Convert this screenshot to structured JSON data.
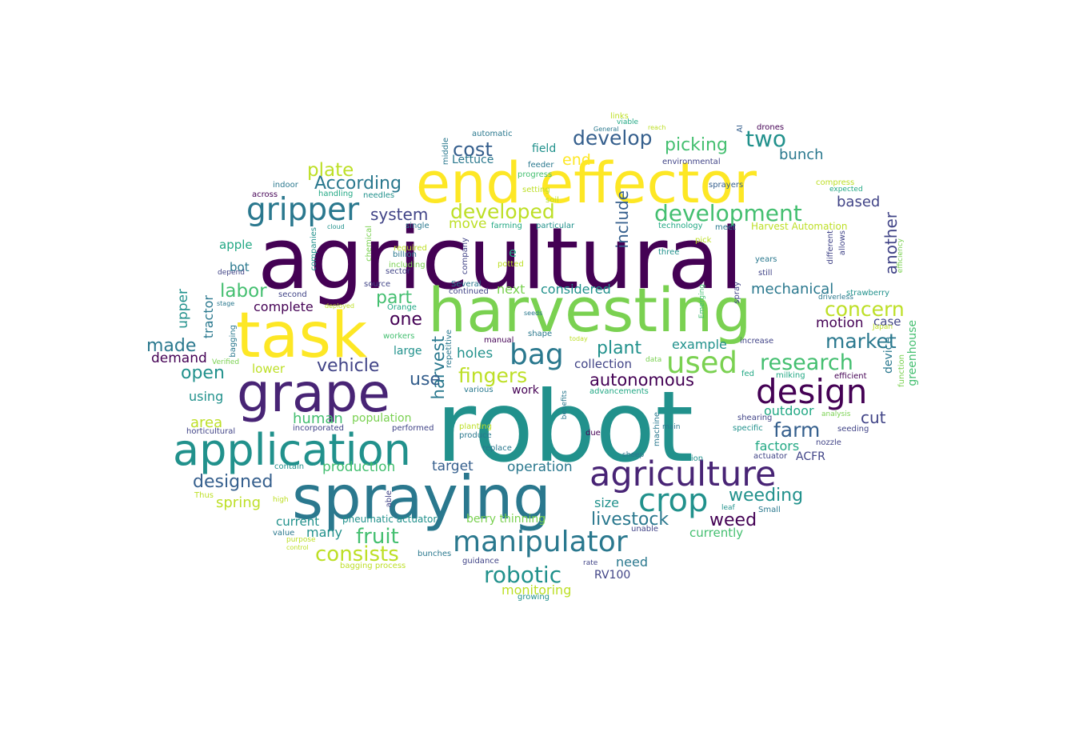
{
  "title": "Agricultural robot word cloud",
  "palette": {
    "p0": "#440154",
    "p1": "#482475",
    "p2": "#414487",
    "p3": "#355f8d",
    "p4": "#2a788e",
    "p5": "#21918c",
    "p6": "#22a884",
    "p7": "#44bf70",
    "p8": "#7ad151",
    "p9": "#bddf26",
    "p10": "#fde725"
  },
  "words": [
    {
      "text": "agricultural",
      "color": "#440154"
    },
    {
      "text": "robot",
      "color": "#21918c"
    },
    {
      "text": "end effector",
      "color": "#fde725"
    },
    {
      "text": "harvesting",
      "color": "#7ad151"
    },
    {
      "text": "spraying",
      "color": "#2a788e"
    },
    {
      "text": "grape",
      "color": "#482475"
    },
    {
      "text": "task",
      "color": "#fde725"
    },
    {
      "text": "application",
      "color": "#21918c"
    },
    {
      "text": "agriculture",
      "color": "#482475"
    },
    {
      "text": "design",
      "color": "#440154"
    },
    {
      "text": "manipulator",
      "color": "#2a788e"
    },
    {
      "text": "gripper",
      "color": "#2a788e"
    },
    {
      "text": "used",
      "color": "#7ad151"
    },
    {
      "text": "crop",
      "color": "#21918c"
    },
    {
      "text": "bag",
      "color": "#2a788e"
    },
    {
      "text": "development",
      "color": "#44bf70"
    },
    {
      "text": "developed",
      "color": "#bddf26"
    },
    {
      "text": "robotic",
      "color": "#21918c"
    },
    {
      "text": "research",
      "color": "#44bf70"
    },
    {
      "text": "two",
      "color": "#21918c"
    },
    {
      "text": "harvest",
      "color": "#2a788e"
    },
    {
      "text": "fruit",
      "color": "#44bf70"
    },
    {
      "text": "livestock",
      "color": "#2a788e"
    },
    {
      "text": "autonomous",
      "color": "#440154"
    },
    {
      "text": "fingers",
      "color": "#bddf26"
    },
    {
      "text": "According",
      "color": "#2a788e"
    },
    {
      "text": "concern",
      "color": "#bddf26"
    },
    {
      "text": "market",
      "color": "#2a788e"
    },
    {
      "text": "consists",
      "color": "#bddf26"
    },
    {
      "text": "develop",
      "color": "#355f8d"
    },
    {
      "text": "cost",
      "color": "#355f8d"
    },
    {
      "text": "plate",
      "color": "#bddf26"
    },
    {
      "text": "picking",
      "color": "#44bf70"
    },
    {
      "text": "farm",
      "color": "#355f8d"
    },
    {
      "text": "labor",
      "color": "#44bf70"
    },
    {
      "text": "plant",
      "color": "#21918c"
    },
    {
      "text": "vehicle",
      "color": "#414487"
    },
    {
      "text": "weeding",
      "color": "#21918c"
    },
    {
      "text": "one",
      "color": "#440154"
    },
    {
      "text": "use",
      "color": "#355f8d"
    },
    {
      "text": "include",
      "color": "#355f8d"
    },
    {
      "text": "another",
      "color": "#414487"
    },
    {
      "text": "system",
      "color": "#414487"
    },
    {
      "text": "made",
      "color": "#2a788e"
    },
    {
      "text": "open",
      "color": "#21918c"
    },
    {
      "text": "designed",
      "color": "#355f8d"
    },
    {
      "text": "weed",
      "color": "#440154"
    },
    {
      "text": "cut",
      "color": "#414487"
    },
    {
      "text": "part",
      "color": "#44bf70"
    },
    {
      "text": "human",
      "color": "#44bf70"
    },
    {
      "text": "mechanical",
      "color": "#2a788e"
    },
    {
      "text": "bunch",
      "color": "#2a788e"
    },
    {
      "text": "move",
      "color": "#bddf26"
    },
    {
      "text": "based",
      "color": "#414487"
    },
    {
      "text": "considered",
      "color": "#21918c"
    },
    {
      "text": "complete",
      "color": "#440154"
    },
    {
      "text": "next",
      "color": "#7ad151"
    },
    {
      "text": "motion",
      "color": "#440154"
    },
    {
      "text": "case",
      "color": "#414487"
    },
    {
      "text": "example",
      "color": "#21918c"
    },
    {
      "text": "holes",
      "color": "#21918c"
    },
    {
      "text": "collection",
      "color": "#414487"
    },
    {
      "text": "area",
      "color": "#bddf26"
    },
    {
      "text": "outdoor",
      "color": "#22a884"
    },
    {
      "text": "factors",
      "color": "#22a884"
    },
    {
      "text": "production",
      "color": "#44bf70"
    },
    {
      "text": "target",
      "color": "#355f8d"
    },
    {
      "text": "operation",
      "color": "#2a788e"
    },
    {
      "text": "spring",
      "color": "#bddf26"
    },
    {
      "text": "size",
      "color": "#21918c"
    },
    {
      "text": "current",
      "color": "#21918c"
    },
    {
      "text": "many",
      "color": "#21918c"
    },
    {
      "text": "berry thinning",
      "color": "#7ad151"
    },
    {
      "text": "pneumatic actuator",
      "color": "#21918c"
    },
    {
      "text": "currently",
      "color": "#44bf70"
    },
    {
      "text": "need",
      "color": "#2a788e"
    },
    {
      "text": "RV100",
      "color": "#414487"
    },
    {
      "text": "monitoring",
      "color": "#bddf26"
    },
    {
      "text": "end",
      "color": "#fde725"
    },
    {
      "text": "e",
      "color": "#22a884"
    },
    {
      "text": "population",
      "color": "#7ad151"
    },
    {
      "text": "work",
      "color": "#440154"
    },
    {
      "text": "large",
      "color": "#21918c"
    },
    {
      "text": "lower",
      "color": "#bddf26"
    },
    {
      "text": "tractor",
      "color": "#2a788e"
    },
    {
      "text": "upper",
      "color": "#21918c"
    },
    {
      "text": "demand",
      "color": "#440154"
    },
    {
      "text": "using",
      "color": "#21918c"
    },
    {
      "text": "apple",
      "color": "#22a884"
    },
    {
      "text": "bot",
      "color": "#2a788e"
    },
    {
      "text": "field",
      "color": "#21918c"
    },
    {
      "text": "Lettuce",
      "color": "#2a788e"
    },
    {
      "text": "device",
      "color": "#2a788e"
    },
    {
      "text": "greenhouse",
      "color": "#44bf70"
    },
    {
      "text": "ACFR",
      "color": "#414487"
    },
    {
      "text": "automatic",
      "color": "#2a788e"
    },
    {
      "text": "indoor",
      "color": "#2a788e"
    },
    {
      "text": "across",
      "color": "#440154"
    },
    {
      "text": "handling",
      "color": "#22a884"
    },
    {
      "text": "needles",
      "color": "#21918c"
    },
    {
      "text": "feeder",
      "color": "#2a788e"
    },
    {
      "text": "progress",
      "color": "#44bf70"
    },
    {
      "text": "setting",
      "color": "#bddf26"
    },
    {
      "text": "soil",
      "color": "#bddf26"
    },
    {
      "text": "farming",
      "color": "#22a884"
    },
    {
      "text": "particular",
      "color": "#21918c"
    },
    {
      "text": "single",
      "color": "#2a788e"
    },
    {
      "text": "billion",
      "color": "#2a788e"
    },
    {
      "text": "required",
      "color": "#bddf26"
    },
    {
      "text": "including",
      "color": "#7ad151"
    },
    {
      "text": "sector",
      "color": "#414487"
    },
    {
      "text": "source",
      "color": "#414487"
    },
    {
      "text": "potted",
      "color": "#bddf26"
    },
    {
      "text": "Several",
      "color": "#2a788e"
    },
    {
      "text": "continued",
      "color": "#414487"
    },
    {
      "text": "second",
      "color": "#414487"
    },
    {
      "text": "stage",
      "color": "#2a788e"
    },
    {
      "text": "deployed",
      "color": "#bddf26"
    },
    {
      "text": "Orange",
      "color": "#22a884"
    },
    {
      "text": "seeds",
      "color": "#2a788e"
    },
    {
      "text": "depend",
      "color": "#414487"
    },
    {
      "text": "cloud",
      "color": "#21918c"
    },
    {
      "text": "technology",
      "color": "#22a884"
    },
    {
      "text": "meet",
      "color": "#2a788e"
    },
    {
      "text": "Harvest Automation",
      "color": "#bddf26"
    },
    {
      "text": "pick",
      "color": "#bddf26"
    },
    {
      "text": "three",
      "color": "#21918c"
    },
    {
      "text": "years",
      "color": "#2a788e"
    },
    {
      "text": "still",
      "color": "#414487"
    },
    {
      "text": "driverless",
      "color": "#2a788e"
    },
    {
      "text": "strawberry",
      "color": "#21918c"
    },
    {
      "text": "efficiency",
      "color": "#7ad151"
    },
    {
      "text": "allows",
      "color": "#414487"
    },
    {
      "text": "different",
      "color": "#414487"
    },
    {
      "text": "compress",
      "color": "#bddf26"
    },
    {
      "text": "expected",
      "color": "#22a884"
    },
    {
      "text": "sprayers",
      "color": "#355f8d"
    },
    {
      "text": "environmental",
      "color": "#414487"
    },
    {
      "text": "drones",
      "color": "#440154"
    },
    {
      "text": "AI",
      "color": "#355f8d"
    },
    {
      "text": "General",
      "color": "#2a788e"
    },
    {
      "text": "viable",
      "color": "#22a884"
    },
    {
      "text": "links",
      "color": "#bddf26"
    },
    {
      "text": "reach",
      "color": "#bddf26"
    },
    {
      "text": "middle",
      "color": "#2a788e"
    },
    {
      "text": "company",
      "color": "#414487"
    },
    {
      "text": "companies",
      "color": "#21918c"
    },
    {
      "text": "chemical",
      "color": "#7ad151"
    },
    {
      "text": "workers",
      "color": "#44bf70"
    },
    {
      "text": "shape",
      "color": "#2a788e"
    },
    {
      "text": "today",
      "color": "#bddf26"
    },
    {
      "text": "manual",
      "color": "#440154"
    },
    {
      "text": "repetitive",
      "color": "#2a788e"
    },
    {
      "text": "various",
      "color": "#2a788e"
    },
    {
      "text": "bagging",
      "color": "#2a788e"
    },
    {
      "text": "Verified",
      "color": "#7ad151"
    },
    {
      "text": "horticultural",
      "color": "#414487"
    },
    {
      "text": "incorporated",
      "color": "#414487"
    },
    {
      "text": "performed",
      "color": "#414487"
    },
    {
      "text": "planting",
      "color": "#bddf26"
    },
    {
      "text": "produce",
      "color": "#2a788e"
    },
    {
      "text": "replace",
      "color": "#2a788e"
    },
    {
      "text": "benefits",
      "color": "#2a788e"
    },
    {
      "text": "due",
      "color": "#440154"
    },
    {
      "text": "machine",
      "color": "#2a788e"
    },
    {
      "text": "main",
      "color": "#2a788e"
    },
    {
      "text": "data",
      "color": "#7ad151"
    },
    {
      "text": "advancements",
      "color": "#22a884"
    },
    {
      "text": "Emerging",
      "color": "#44bf70"
    },
    {
      "text": "spray",
      "color": "#414487"
    },
    {
      "text": "increase",
      "color": "#414487"
    },
    {
      "text": "Japan",
      "color": "#bddf26"
    },
    {
      "text": "fed",
      "color": "#22a884"
    },
    {
      "text": "milking",
      "color": "#22a884"
    },
    {
      "text": "efficient",
      "color": "#440154"
    },
    {
      "text": "function",
      "color": "#7ad151"
    },
    {
      "text": "analysis",
      "color": "#7ad151"
    },
    {
      "text": "shearing",
      "color": "#414487"
    },
    {
      "text": "specific",
      "color": "#21918c"
    },
    {
      "text": "nozzle",
      "color": "#414487"
    },
    {
      "text": "seeding",
      "color": "#414487"
    },
    {
      "text": "actuator",
      "color": "#414487"
    },
    {
      "text": "sheep",
      "color": "#2a788e"
    },
    {
      "text": "vision",
      "color": "#21918c"
    },
    {
      "text": "leaf",
      "color": "#21918c"
    },
    {
      "text": "Small",
      "color": "#2a788e"
    },
    {
      "text": "unable",
      "color": "#414487"
    },
    {
      "text": "contain",
      "color": "#21918c"
    },
    {
      "text": "Thus",
      "color": "#bddf26"
    },
    {
      "text": "high",
      "color": "#bddf26"
    },
    {
      "text": "able",
      "color": "#414487"
    },
    {
      "text": "value",
      "color": "#2a788e"
    },
    {
      "text": "purpose",
      "color": "#bddf26"
    },
    {
      "text": "control",
      "color": "#bddf26"
    },
    {
      "text": "bunches",
      "color": "#2a788e"
    },
    {
      "text": "bagging process",
      "color": "#bddf26"
    },
    {
      "text": "guidance",
      "color": "#414487"
    },
    {
      "text": "rate",
      "color": "#414487"
    },
    {
      "text": "growing",
      "color": "#21918c"
    }
  ]
}
